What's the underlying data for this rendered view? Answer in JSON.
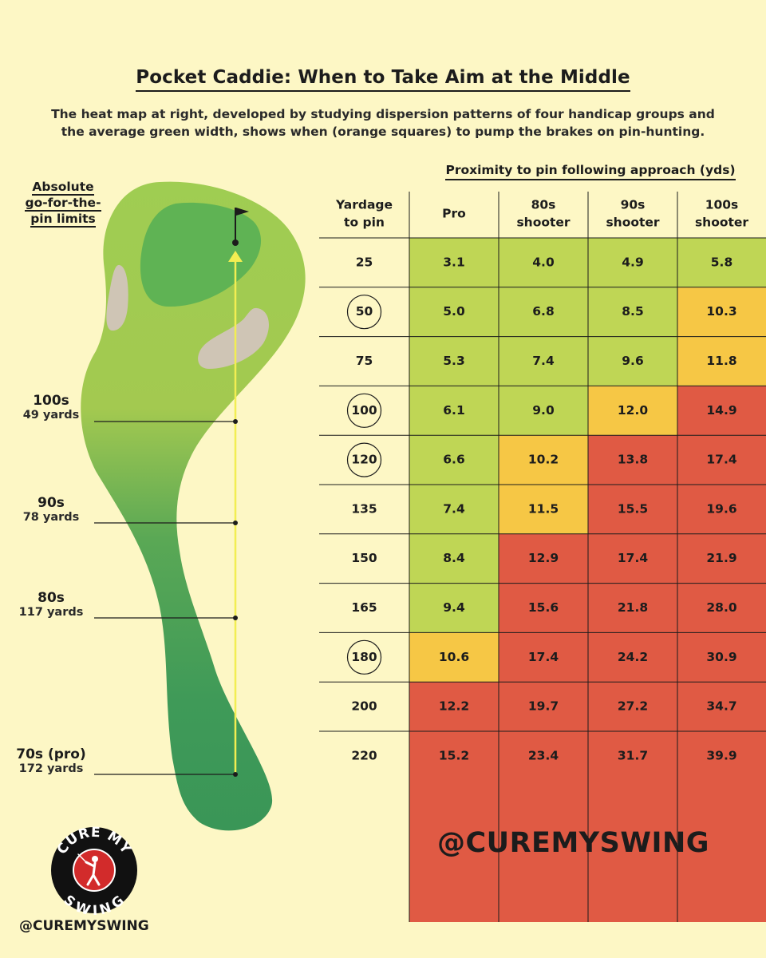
{
  "title": "Pocket Caddie: When to Take Aim at the Middle",
  "subtitle_line1": "The heat map at right, developed by studying dispersion patterns of four handicap groups and",
  "subtitle_line2": "the average green width, shows when (orange squares) to pump the brakes on pin-hunting.",
  "hole": {
    "label_line1": "Absolute",
    "label_line2": "go-for-the-",
    "label_line3": "pin limits",
    "limits": [
      {
        "group": "100s",
        "yards_label": "49 yards"
      },
      {
        "group": "90s",
        "yards_label": "78 yards"
      },
      {
        "group": "80s",
        "yards_label": "117 yards"
      },
      {
        "group": "70s (pro)",
        "yards_label": "172 yards"
      }
    ]
  },
  "chart_data": {
    "type": "heatmap",
    "title": "Proximity to pin following approach (yds)",
    "row_header": "Yardage to pin",
    "row_header_line1": "Yardage",
    "row_header_line2": "to pin",
    "columns": [
      {
        "line1": "Pro",
        "line2": ""
      },
      {
        "line1": "80s",
        "line2": "shooter"
      },
      {
        "line1": "90s",
        "line2": "shooter"
      },
      {
        "line1": "100s",
        "line2": "shooter"
      }
    ],
    "rows": [
      "25",
      "50",
      "75",
      "100",
      "120",
      "135",
      "150",
      "165",
      "180",
      "200",
      "220"
    ],
    "circled_rows": [
      "50",
      "100",
      "120",
      "180"
    ],
    "values": [
      [
        "3.1",
        "4.0",
        "4.9",
        "5.8"
      ],
      [
        "5.0",
        "6.8",
        "8.5",
        "10.3"
      ],
      [
        "5.3",
        "7.4",
        "9.6",
        "11.8"
      ],
      [
        "6.1",
        "9.0",
        "12.0",
        "14.9"
      ],
      [
        "6.6",
        "10.2",
        "13.8",
        "17.4"
      ],
      [
        "7.4",
        "11.5",
        "15.5",
        "19.6"
      ],
      [
        "8.4",
        "12.9",
        "17.4",
        "21.9"
      ],
      [
        "9.4",
        "15.6",
        "21.8",
        "28.0"
      ],
      [
        "10.6",
        "17.4",
        "24.2",
        "30.9"
      ],
      [
        "12.2",
        "19.7",
        "27.2",
        "34.7"
      ],
      [
        "15.2",
        "23.4",
        "31.7",
        "39.9"
      ]
    ],
    "zones": [
      [
        "green",
        "green",
        "green",
        "green"
      ],
      [
        "green",
        "green",
        "green",
        "orange"
      ],
      [
        "green",
        "green",
        "green",
        "orange"
      ],
      [
        "green",
        "green",
        "orange",
        "red"
      ],
      [
        "green",
        "orange",
        "red",
        "red"
      ],
      [
        "green",
        "orange",
        "red",
        "red"
      ],
      [
        "green",
        "red",
        "red",
        "red"
      ],
      [
        "green",
        "red",
        "red",
        "red"
      ],
      [
        "orange",
        "red",
        "red",
        "red"
      ],
      [
        "red",
        "red",
        "red",
        "red"
      ],
      [
        "red",
        "red",
        "red",
        "red"
      ]
    ],
    "zone_colors": {
      "green": "#bfd655",
      "orange": "#f6c745",
      "red": "#e05a44"
    },
    "legend": "none",
    "grid": true
  },
  "watermark": {
    "large": "@CUREMYSWING",
    "small": "@CUREMYSWING"
  },
  "logo": {
    "top_text": "CURE MY",
    "bottom_text": "SWING"
  }
}
